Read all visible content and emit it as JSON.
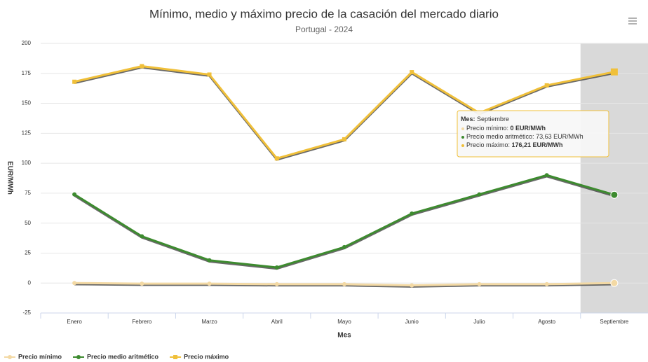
{
  "chart_data": {
    "type": "line",
    "title": "Mínimo, medio y máximo precio de la casación del mercado diario",
    "subtitle": "Portugal - 2024",
    "x_label": "Mes",
    "y_label": "EUR/MWh",
    "categories": [
      "Enero",
      "Febrero",
      "Marzo",
      "Abril",
      "Mayo",
      "Junio",
      "Julio",
      "Agosto",
      "Septiembre"
    ],
    "series": [
      {
        "name": "Precio mínimo",
        "color": "#f3d9a4",
        "marker": "circle",
        "values": [
          0,
          -0.5,
          -0.5,
          -1,
          -1,
          -2,
          -1,
          -1,
          0
        ]
      },
      {
        "name": "Precio medio aritmético",
        "color": "#3d8b2f",
        "marker": "circle",
        "values": [
          74,
          39,
          19,
          13,
          30,
          58,
          74,
          90,
          73.63
        ]
      },
      {
        "name": "Precio máximo",
        "color": "#f0c03a",
        "marker": "square",
        "values": [
          168,
          181,
          174,
          104,
          120,
          176,
          142,
          165,
          176.21
        ]
      }
    ],
    "ylim": [
      -25,
      200
    ],
    "yticks": [
      -25,
      0,
      25,
      50,
      75,
      100,
      125,
      150,
      175,
      200
    ],
    "grid": true,
    "legend": "bottom-left",
    "tooltip": {
      "title_label": "Mes:",
      "title_value": "Septiembre",
      "lines": [
        {
          "label": "Precio mínimo:",
          "value": "0 EUR/MWh"
        },
        {
          "label": "Precio medio aritmético:",
          "value": "73,63 EUR/MWh"
        },
        {
          "label": "Precio máximo:",
          "value": "176,21 EUR/MWh"
        }
      ]
    }
  }
}
